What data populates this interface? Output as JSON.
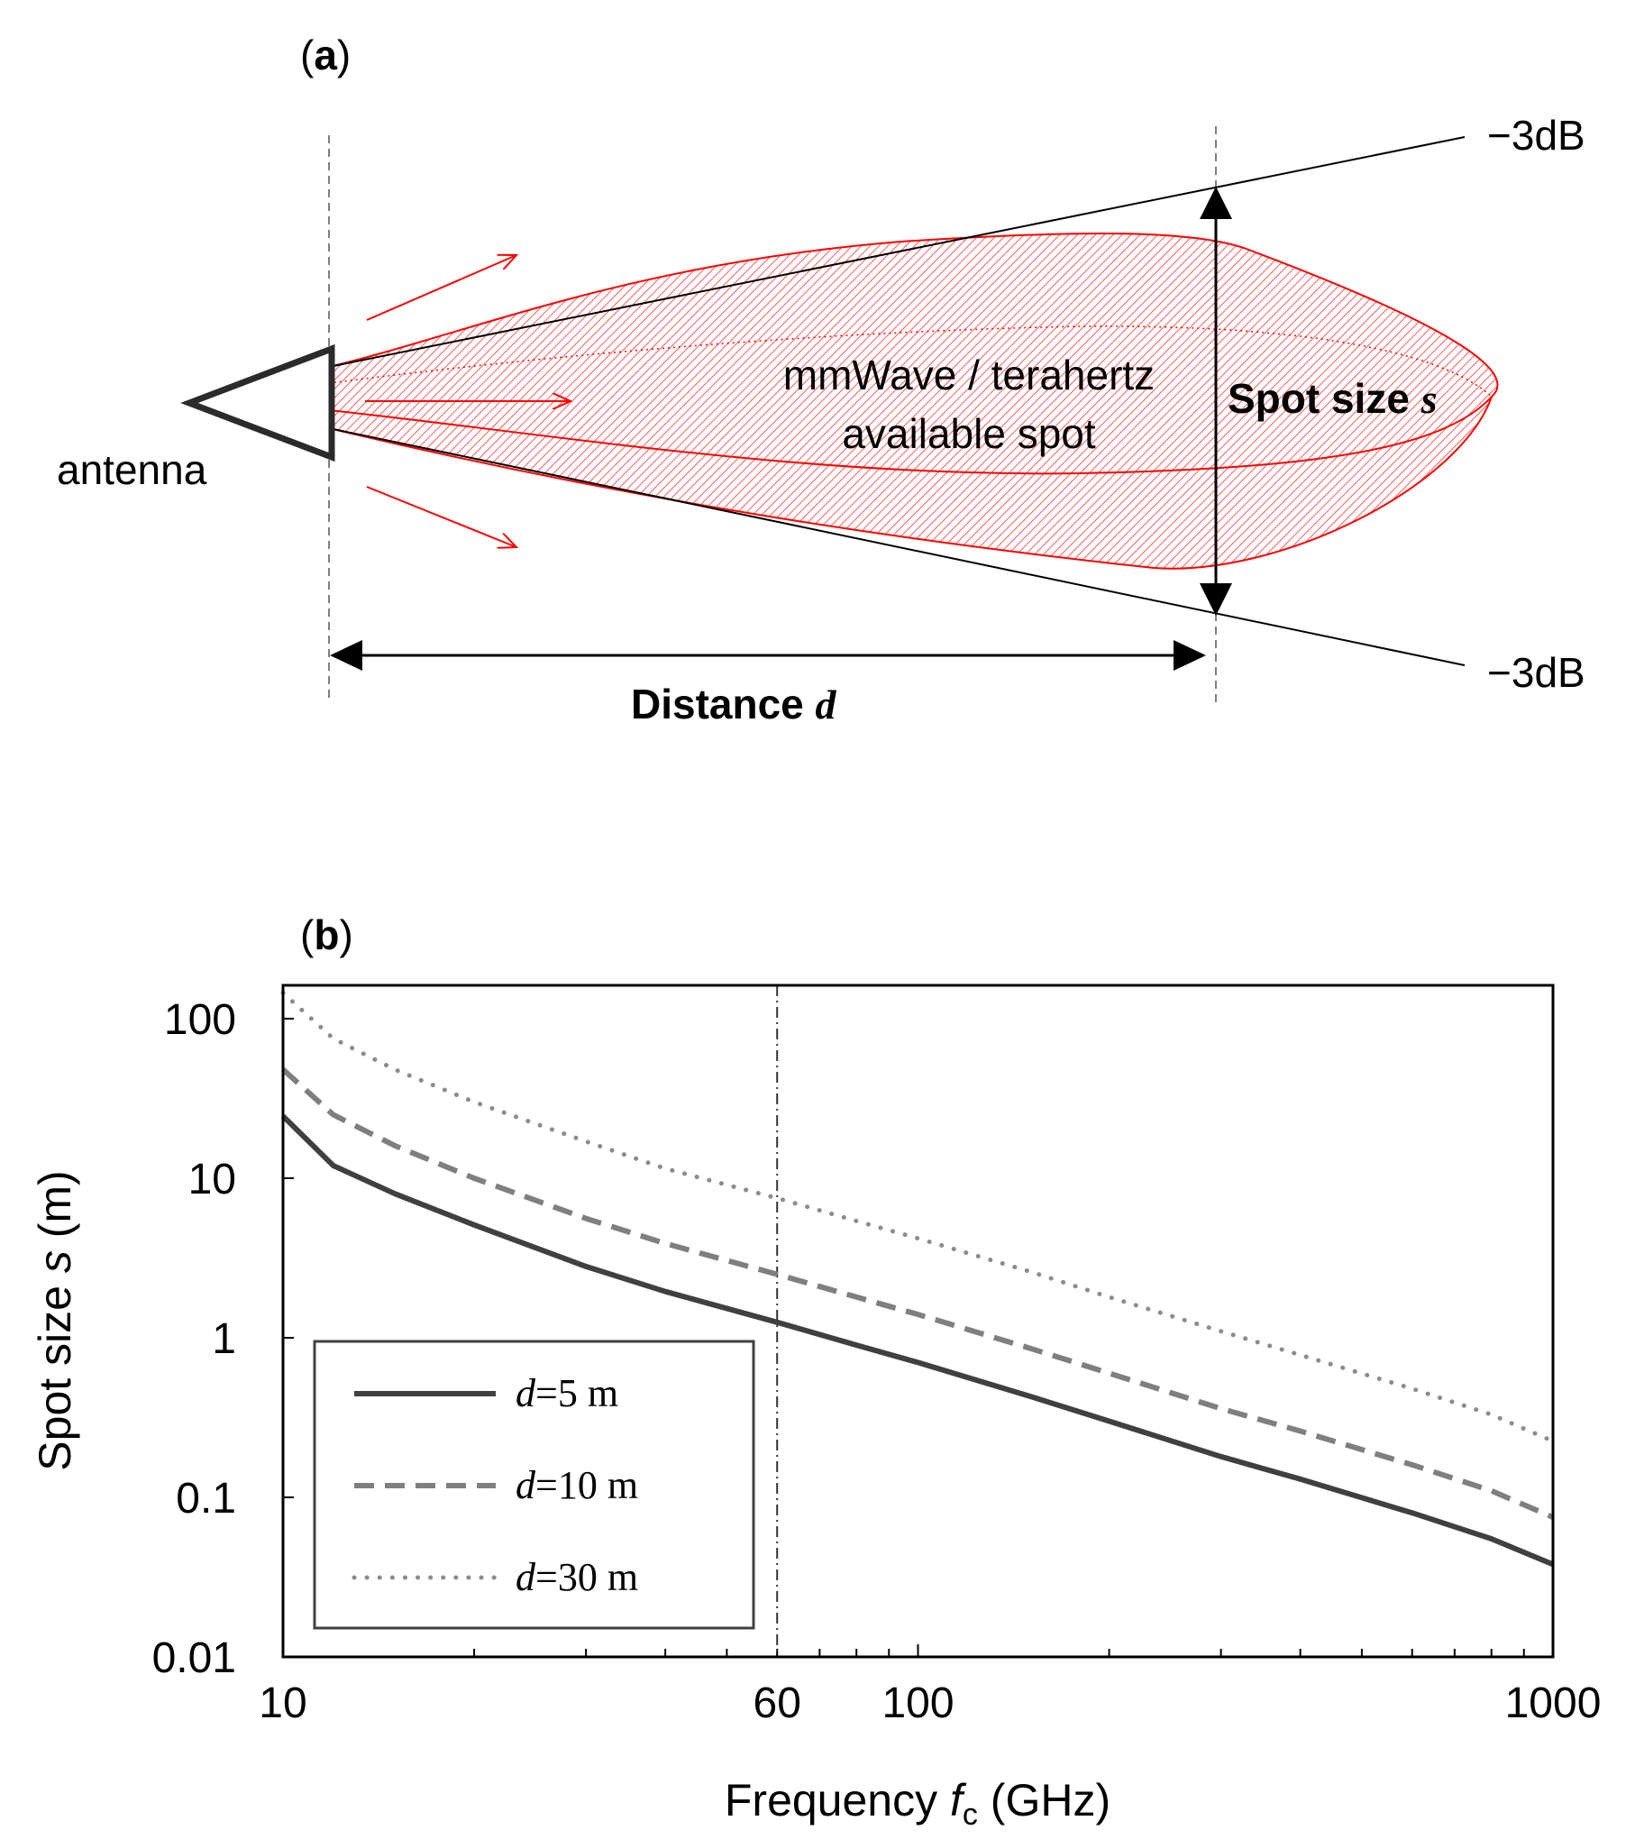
{
  "panel_a": {
    "label_open": "(",
    "label_letter": "a",
    "label_close": ")",
    "antenna_label": "antenna",
    "beam_text_line1": "mmWave / terahertz",
    "beam_text_line2": "available spot",
    "spot_size_label": "Spot size ",
    "spot_size_var": "s",
    "distance_label": "Distance ",
    "distance_var": "d",
    "upper_db": "−3dB",
    "lower_db": "−3dB",
    "beam_color": "#ff0000"
  },
  "panel_b": {
    "label_open": "(",
    "label_letter": "b",
    "label_close": ")"
  },
  "chart_data": {
    "type": "line",
    "xscale": "log",
    "yscale": "log",
    "xlim": [
      10,
      1000
    ],
    "ylim": [
      0.01,
      150
    ],
    "xticks": [
      10,
      60,
      100,
      1000
    ],
    "xtick_labels": [
      "10",
      "60",
      "100",
      "1000"
    ],
    "yticks": [
      0.01,
      0.1,
      1,
      10,
      100
    ],
    "ytick_labels": [
      "0.01",
      "0.1",
      "1",
      "10",
      "100"
    ],
    "xlabel_main": "Frequency ",
    "xlabel_var": "f",
    "xlabel_sub": "c",
    "xlabel_unit": " (GHz)",
    "ylabel_main": "Spot size ",
    "ylabel_var": "s",
    "ylabel_unit": " (m)",
    "vline_x": 60,
    "legend_position": "lower-left",
    "x": [
      10,
      12,
      15,
      20,
      30,
      40,
      60,
      80,
      100,
      150,
      200,
      300,
      400,
      600,
      800,
      1000
    ],
    "series": [
      {
        "name": "d=5 m",
        "legend_var": "d",
        "legend_rest": "=5 m",
        "style": "solid",
        "color": "#404040",
        "values": [
          24.5,
          12,
          8.0,
          5.1,
          2.8,
          1.95,
          1.25,
          0.9,
          0.7,
          0.43,
          0.3,
          0.18,
          0.13,
          0.08,
          0.055,
          0.038
        ]
      },
      {
        "name": "d=10 m",
        "legend_var": "d",
        "legend_rest": "=10 m",
        "style": "dashed",
        "color": "#7f7f7f",
        "values": [
          48,
          25,
          16,
          10,
          5.6,
          3.9,
          2.5,
          1.8,
          1.4,
          0.86,
          0.6,
          0.36,
          0.26,
          0.16,
          0.11,
          0.075
        ]
      },
      {
        "name": "d=30 m",
        "legend_var": "d",
        "legend_rest": "=30 m",
        "style": "dotted",
        "color": "#8c8c8c",
        "values": [
          145,
          75,
          48,
          30,
          17,
          11.5,
          7.5,
          5.4,
          4.2,
          2.6,
          1.8,
          1.1,
          0.78,
          0.48,
          0.33,
          0.225
        ]
      }
    ]
  }
}
